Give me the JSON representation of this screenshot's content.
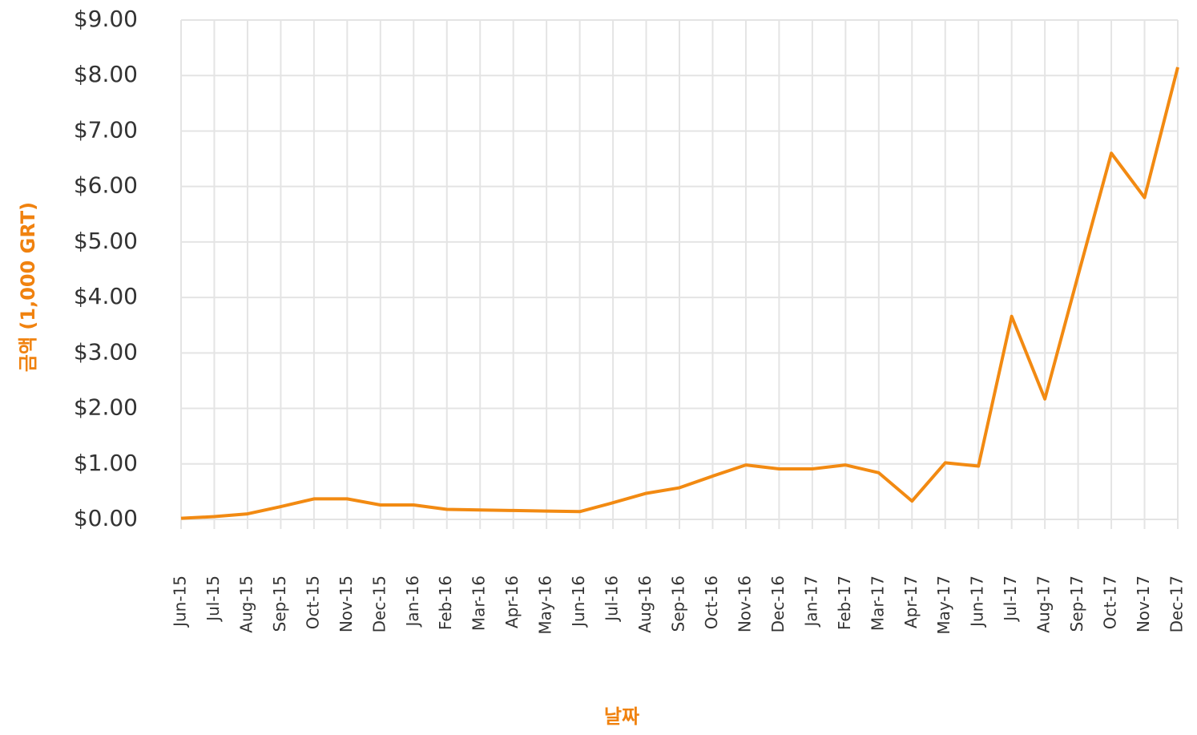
{
  "chart_data": {
    "type": "line",
    "xlabel": "날짜",
    "ylabel": "금액 (1,000 GRT)",
    "categories": [
      "Jun-15",
      "Jul-15",
      "Aug-15",
      "Sep-15",
      "Oct-15",
      "Nov-15",
      "Dec-15",
      "Jan-16",
      "Feb-16",
      "Mar-16",
      "Apr-16",
      "May-16",
      "Jun-16",
      "Jul-16",
      "Aug-16",
      "Sep-16",
      "Oct-16",
      "Nov-16",
      "Dec-16",
      "Jan-17",
      "Feb-17",
      "Mar-17",
      "Apr-17",
      "May-17",
      "Jun-17",
      "Jul-17",
      "Aug-17",
      "Sep-17",
      "Oct-17",
      "Nov-17",
      "Dec-17"
    ],
    "series": [
      {
        "color": "#f28a12",
        "values": [
          0.02,
          0.05,
          0.1,
          0.23,
          0.37,
          0.37,
          0.26,
          0.26,
          0.18,
          0.17,
          0.16,
          0.15,
          0.14,
          0.3,
          0.47,
          0.57,
          0.78,
          0.98,
          0.91,
          0.91,
          0.98,
          0.84,
          0.33,
          1.02,
          0.96,
          3.66,
          2.17,
          4.4,
          6.6,
          5.8,
          8.15
        ]
      }
    ],
    "ylim": [
      0,
      9
    ],
    "yticks": [
      {
        "value": 0,
        "label": "$0.00"
      },
      {
        "value": 1,
        "label": "$1.00"
      },
      {
        "value": 2,
        "label": "$2.00"
      },
      {
        "value": 3,
        "label": "$3.00"
      },
      {
        "value": 4,
        "label": "$4.00"
      },
      {
        "value": 5,
        "label": "$5.00"
      },
      {
        "value": 6,
        "label": "$6.00"
      },
      {
        "value": 7,
        "label": "$7.00"
      },
      {
        "value": 8,
        "label": "$8.00"
      },
      {
        "value": 9,
        "label": "$9.00"
      }
    ],
    "grid": true
  }
}
